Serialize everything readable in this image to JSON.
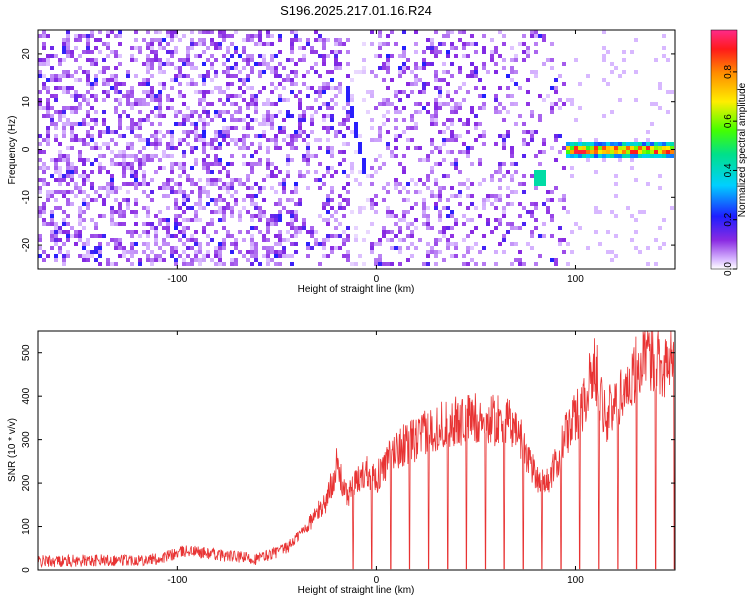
{
  "title": "S196.2025.217.01.16.R24",
  "colors": {
    "snr_line": "#e83333",
    "spectrogram_base": "#8a2be2",
    "axis": "#000000"
  },
  "chart_data": [
    {
      "type": "heatmap",
      "xlabel": "Height of straight line (km)",
      "ylabel": "Frequency (Hz)",
      "xlim": [
        -170,
        150
      ],
      "ylim": [
        -25,
        25
      ],
      "x_ticks": [
        -100,
        0,
        100
      ],
      "y_ticks": [
        -20,
        -10,
        0,
        10,
        20
      ],
      "colorbar": {
        "label": "Normalized spectral amplitude",
        "range": [
          0,
          0.97
        ],
        "ticks": [
          0.0,
          0.2,
          0.4,
          0.6,
          0.8
        ],
        "colormap": "rainbow"
      },
      "features": [
        {
          "kind": "diagonal-streak",
          "x": [
            -16,
            -5
          ],
          "y": [
            15,
            -6
          ]
        },
        {
          "kind": "spot",
          "x": 82,
          "y": -6,
          "amplitude": 0.5
        },
        {
          "kind": "band",
          "x": [
            95,
            148
          ],
          "y": 0,
          "amplitude": 0.9
        }
      ]
    },
    {
      "type": "line",
      "xlabel": "Height of straight line (km)",
      "ylabel": "SNR (10 * v/v)",
      "xlim": [
        -170,
        150
      ],
      "ylim": [
        0,
        550
      ],
      "x_ticks": [
        -100,
        0,
        100
      ],
      "y_ticks": [
        0,
        100,
        200,
        300,
        400,
        500
      ],
      "series": [
        {
          "x": [
            -170,
            -140,
            -110,
            -95,
            -80,
            -60,
            -45,
            -35,
            -25,
            -20,
            -15,
            -5,
            0,
            10,
            20,
            30,
            40,
            50,
            60,
            70,
            80,
            85,
            90,
            95,
            100,
            105,
            110,
            115,
            120,
            125,
            130,
            135,
            140,
            145,
            150
          ],
          "values": [
            20,
            22,
            25,
            45,
            35,
            25,
            50,
            100,
            160,
            240,
            170,
            230,
            210,
            280,
            300,
            330,
            340,
            350,
            345,
            330,
            220,
            195,
            240,
            310,
            350,
            400,
            470,
            350,
            380,
            420,
            460,
            480,
            500,
            470,
            480
          ]
        }
      ]
    }
  ]
}
